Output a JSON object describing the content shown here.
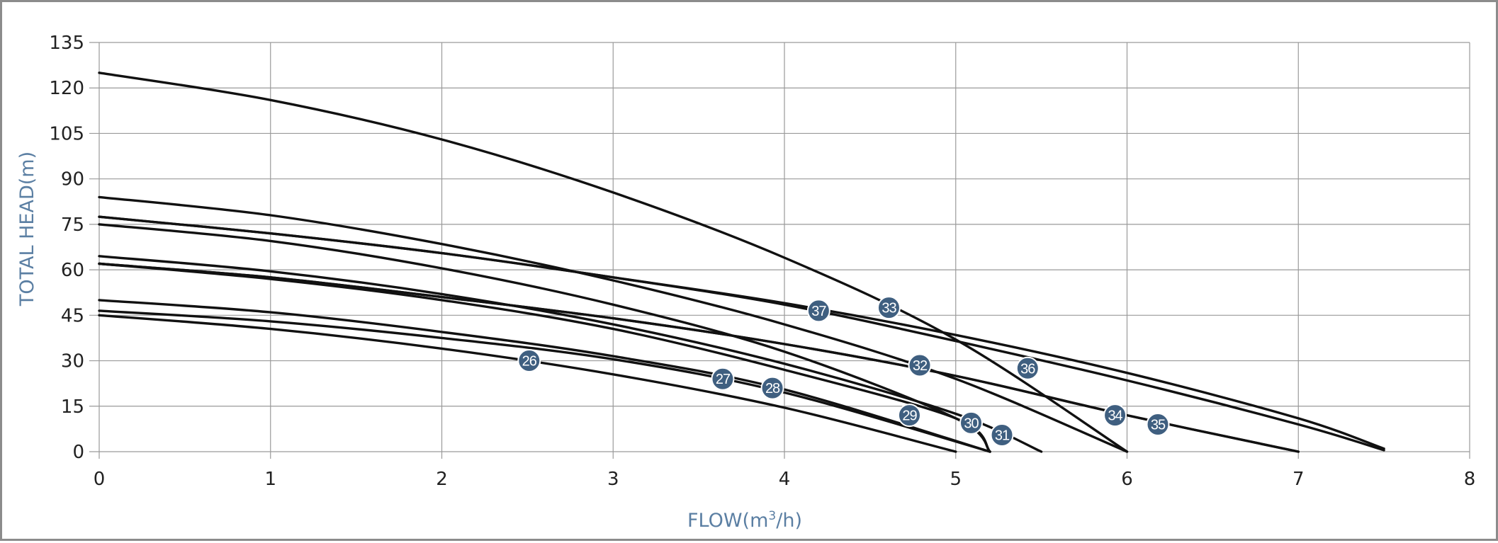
{
  "chart_data": {
    "type": "line",
    "title": "",
    "xlabel_parts": [
      "FLOW(m",
      "3",
      "/h)"
    ],
    "ylabel": "TOTAL HEAD(m)",
    "xlim": [
      0,
      8
    ],
    "ylim": [
      0,
      135
    ],
    "x_ticks": [
      0,
      1,
      2,
      3,
      4,
      5,
      6,
      7,
      8
    ],
    "y_ticks": [
      0,
      15,
      30,
      45,
      60,
      75,
      90,
      105,
      120,
      135
    ],
    "grid": true,
    "legend": "none",
    "colors": {
      "curve": "#111111",
      "grid": "#9a9a9a",
      "marker": "#3f5f80",
      "axis_title": "#5b7fa3"
    },
    "series": [
      {
        "label": "26",
        "points": [
          [
            0,
            45
          ],
          [
            1,
            40.5
          ],
          [
            2,
            34
          ],
          [
            3,
            25.5
          ],
          [
            4,
            14.5
          ],
          [
            5,
            0
          ]
        ],
        "marker": [
          2.51,
          30
        ]
      },
      {
        "label": "27",
        "points": [
          [
            0,
            46.5
          ],
          [
            1,
            43
          ],
          [
            2,
            37.5
          ],
          [
            3,
            30.5
          ],
          [
            4,
            19.5
          ],
          [
            5.2,
            0
          ]
        ],
        "marker": [
          3.64,
          24
        ]
      },
      {
        "label": "28",
        "points": [
          [
            0,
            50
          ],
          [
            1,
            46
          ],
          [
            2,
            39.5
          ],
          [
            3,
            31.5
          ],
          [
            4,
            20.5
          ],
          [
            5.2,
            0
          ]
        ],
        "marker": [
          3.93,
          21
        ]
      },
      {
        "label": "29",
        "points": [
          [
            0,
            62
          ],
          [
            1,
            57
          ],
          [
            2,
            50
          ],
          [
            3,
            40.5
          ],
          [
            4,
            27
          ],
          [
            5,
            11
          ],
          [
            5.2,
            0
          ]
        ],
        "marker": [
          4.73,
          12
        ]
      },
      {
        "label": "30",
        "points": [
          [
            0,
            64.5
          ],
          [
            1,
            59.5
          ],
          [
            2,
            52
          ],
          [
            3,
            42
          ],
          [
            4,
            29
          ],
          [
            5,
            12.5
          ],
          [
            5.5,
            0
          ]
        ],
        "marker": [
          5.09,
          9.5
        ]
      },
      {
        "label": "31",
        "points": [
          [
            0,
            75
          ],
          [
            1,
            69.5
          ],
          [
            2,
            60.5
          ],
          [
            3,
            48.5
          ],
          [
            4,
            33
          ],
          [
            5,
            11
          ],
          [
            5.2,
            0
          ]
        ],
        "marker": [
          5.27,
          5.5
        ]
      },
      {
        "label": "32",
        "points": [
          [
            0,
            84
          ],
          [
            1,
            78
          ],
          [
            2,
            68.5
          ],
          [
            3,
            56.5
          ],
          [
            4,
            42
          ],
          [
            5,
            24
          ],
          [
            6,
            0
          ]
        ],
        "marker": [
          4.79,
          28.5
        ]
      },
      {
        "label": "33",
        "points": [
          [
            0,
            125
          ],
          [
            1,
            116
          ],
          [
            2,
            103
          ],
          [
            3,
            85.5
          ],
          [
            4,
            64
          ],
          [
            5,
            37
          ],
          [
            6,
            0
          ]
        ],
        "marker": [
          4.61,
          47.5
        ]
      },
      {
        "label": "34",
        "points": [
          [
            0,
            62
          ],
          [
            1,
            57.5
          ],
          [
            2,
            51
          ],
          [
            3,
            44
          ],
          [
            4,
            35.5
          ],
          [
            5,
            25
          ],
          [
            6,
            12
          ],
          [
            7,
            0
          ]
        ],
        "marker": [
          5.93,
          12
        ]
      },
      {
        "label": "35",
        "points": [
          [
            0,
            62
          ],
          [
            1,
            57.5
          ],
          [
            2,
            51
          ],
          [
            3,
            44
          ],
          [
            4,
            35.5
          ],
          [
            5,
            25
          ],
          [
            6,
            12
          ],
          [
            7,
            0
          ]
        ],
        "marker": [
          6.18,
          9
        ]
      },
      {
        "label": "36",
        "points": [
          [
            0,
            77.5
          ],
          [
            1,
            72
          ],
          [
            2,
            65.5
          ],
          [
            3,
            57.5
          ],
          [
            4,
            48.5
          ],
          [
            5,
            36.5
          ],
          [
            6,
            23.5
          ],
          [
            7,
            9
          ],
          [
            7.5,
            0.5
          ]
        ],
        "marker": [
          5.42,
          27.5
        ]
      },
      {
        "label": "37",
        "points": [
          [
            0,
            77.5
          ],
          [
            1,
            72
          ],
          [
            2,
            65.5
          ],
          [
            3,
            57.5
          ],
          [
            4,
            49
          ],
          [
            5,
            38.5
          ],
          [
            6,
            26
          ],
          [
            7,
            11
          ],
          [
            7.5,
            1
          ]
        ],
        "marker": [
          4.2,
          46.5
        ]
      }
    ]
  }
}
